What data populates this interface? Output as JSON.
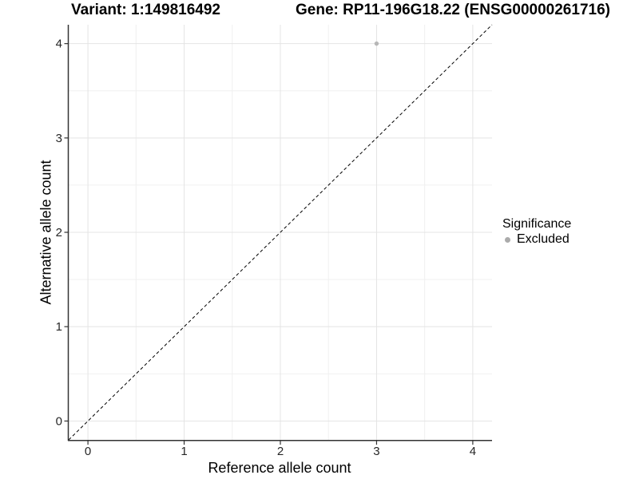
{
  "chart_data": {
    "type": "scatter",
    "variant_title": "Variant: 1:149816492",
    "gene_title": "Gene: RP11-196G18.22 (ENSG00000261716)",
    "xlabel": "Reference allele count",
    "ylabel": "Alternative allele count",
    "xlim": [
      -0.2,
      4.2
    ],
    "ylim": [
      -0.2,
      4.2
    ],
    "xticks": [
      0,
      1,
      2,
      3,
      4
    ],
    "yticks": [
      0,
      1,
      2,
      3,
      4
    ],
    "x_minor_ticks": [
      0.5,
      1.5,
      2.5,
      3.5
    ],
    "y_minor_ticks": [
      0.5,
      1.5,
      2.5,
      3.5
    ],
    "grid": true,
    "identity_line": {
      "style": "dashed",
      "slope": 1,
      "intercept": 0,
      "color": "#000000"
    },
    "series": [
      {
        "name": "Excluded",
        "color": "#b7b7b7",
        "point_radius": 2.7,
        "points": [
          {
            "x": 3,
            "y": 4
          }
        ]
      }
    ],
    "legend": {
      "title": "Significance",
      "position": "right",
      "items": [
        {
          "label": "Excluded",
          "color": "#ababab",
          "marker": "circle"
        }
      ]
    },
    "colors": {
      "grid_major": "#e4e4e4",
      "grid_minor": "#f0f0f0",
      "axis_line": "#333333",
      "tick_label": "#262626"
    }
  }
}
